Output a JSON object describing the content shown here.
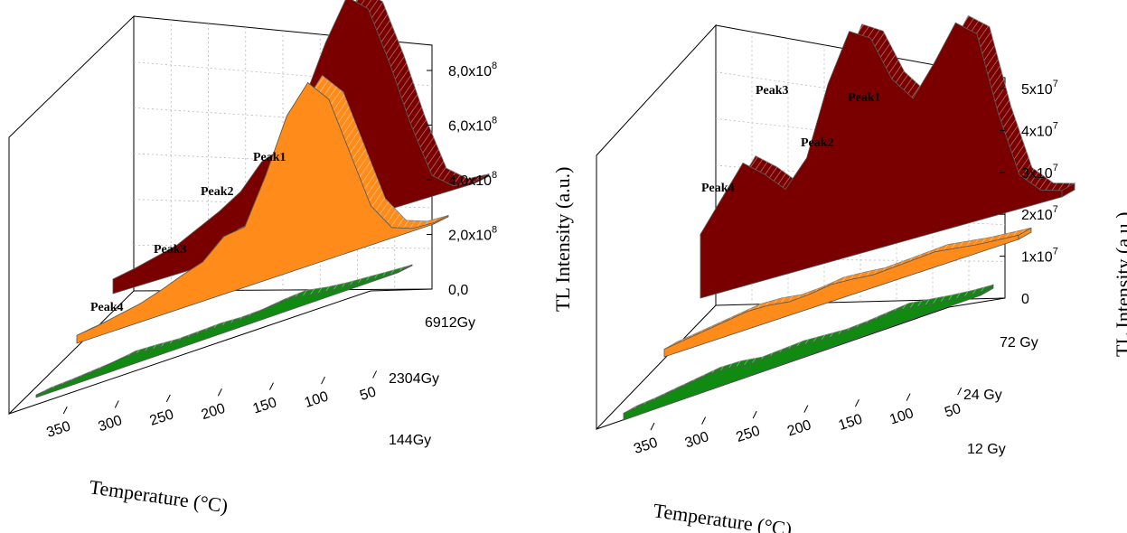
{
  "chart_data": [
    {
      "type": "area",
      "subtype": "3d-waterfall",
      "xlabel": "Temperature (°C)",
      "ylabel": "TL Intensity (a.u.)",
      "xlim": [
        40,
        380
      ],
      "x_ticks": [
        "350",
        "300",
        "250",
        "200",
        "150",
        "100",
        "50"
      ],
      "z_ticks": [
        "0,0",
        "2,0x10",
        "4,0x10",
        "6,0x10",
        "8,0x10"
      ],
      "z_tick_exp": [
        "",
        "8",
        "8",
        "8",
        "8"
      ],
      "zlim": [
        0,
        900000000
      ],
      "series": [
        {
          "name": "144Gy",
          "color": "#118a11",
          "x": [
            40,
            60,
            80,
            100,
            120,
            140,
            160,
            180,
            200,
            220,
            240,
            260,
            280,
            300,
            320,
            340,
            360,
            380
          ],
          "values": [
            3000000,
            8000000,
            14000000,
            20000000,
            30000000,
            45000000,
            40000000,
            30000000,
            28000000,
            32000000,
            30000000,
            28000000,
            34000000,
            38000000,
            26000000,
            20000000,
            14000000,
            10000000
          ]
        },
        {
          "name": "2304Gy",
          "color": "#ff8c1a",
          "x": [
            40,
            60,
            80,
            100,
            120,
            140,
            160,
            180,
            200,
            220,
            240,
            260,
            280,
            300,
            320,
            340,
            360,
            380
          ],
          "values": [
            5000000,
            10000000,
            40000000,
            150000000,
            380000000,
            610000000,
            700000000,
            600000000,
            400000000,
            230000000,
            220000000,
            150000000,
            125000000,
            95000000,
            70000000,
            55000000,
            40000000,
            30000000
          ]
        },
        {
          "name": "6912Gy",
          "color": "#7a0000",
          "x": [
            40,
            60,
            80,
            100,
            120,
            140,
            160,
            180,
            200,
            220,
            240,
            260,
            280,
            300,
            320,
            340,
            360,
            380
          ],
          "values": [
            8000000,
            15000000,
            80000000,
            300000000,
            560000000,
            790000000,
            860000000,
            710000000,
            520000000,
            360000000,
            330000000,
            240000000,
            190000000,
            150000000,
            110000000,
            90000000,
            70000000,
            55000000
          ]
        }
      ],
      "annotations": [
        "Peak1",
        "Peak2",
        "Peak3",
        "Peak4"
      ]
    },
    {
      "type": "area",
      "subtype": "3d-waterfall",
      "xlabel": "Temperature (°C)",
      "ylabel": "TL Intensity (a.u.)",
      "xlim": [
        40,
        380
      ],
      "x_ticks": [
        "350",
        "300",
        "250",
        "200",
        "150",
        "100",
        "50"
      ],
      "z_ticks": [
        "0",
        "1x10",
        "2x10",
        "3x10",
        "4x10",
        "5x10"
      ],
      "z_tick_exp": [
        "",
        "7",
        "7",
        "7",
        "7",
        "7"
      ],
      "zlim": [
        0,
        54000000
      ],
      "series": [
        {
          "name": "12 Gy",
          "color": "#118a11",
          "x": [
            40,
            60,
            80,
            100,
            120,
            140,
            160,
            180,
            200,
            220,
            240,
            260,
            280,
            300,
            320,
            340,
            360,
            380
          ],
          "values": [
            800000,
            1200000,
            1800000,
            2600000,
            3400000,
            3000000,
            2600000,
            2400000,
            2800000,
            3200000,
            3000000,
            2800000,
            3600000,
            3800000,
            3200000,
            2600000,
            2000000,
            1600000
          ]
        },
        {
          "name": "24 Gy",
          "color": "#ff8c1a",
          "x": [
            40,
            60,
            80,
            100,
            120,
            140,
            160,
            180,
            200,
            220,
            240,
            260,
            280,
            300,
            320,
            340,
            360,
            380
          ],
          "values": [
            1000000,
            1500000,
            2000000,
            2800000,
            3600000,
            3400000,
            3200000,
            3000000,
            3600000,
            4000000,
            3400000,
            3200000,
            4000000,
            4200000,
            3600000,
            3000000,
            2400000,
            1800000
          ]
        },
        {
          "name": "72 Gy",
          "color": "#7a0000",
          "x": [
            40,
            60,
            80,
            100,
            120,
            140,
            160,
            180,
            200,
            220,
            240,
            260,
            280,
            300,
            320,
            340,
            360,
            380
          ],
          "values": [
            1500000,
            3000000,
            8000000,
            24000000,
            44000000,
            48000000,
            40000000,
            33000000,
            39000000,
            50000000,
            53000000,
            42000000,
            26000000,
            20000000,
            25000000,
            29000000,
            22000000,
            15000000
          ]
        }
      ],
      "annotations": [
        "Peak1",
        "Peak2",
        "Peak3",
        "Peak4"
      ]
    }
  ]
}
